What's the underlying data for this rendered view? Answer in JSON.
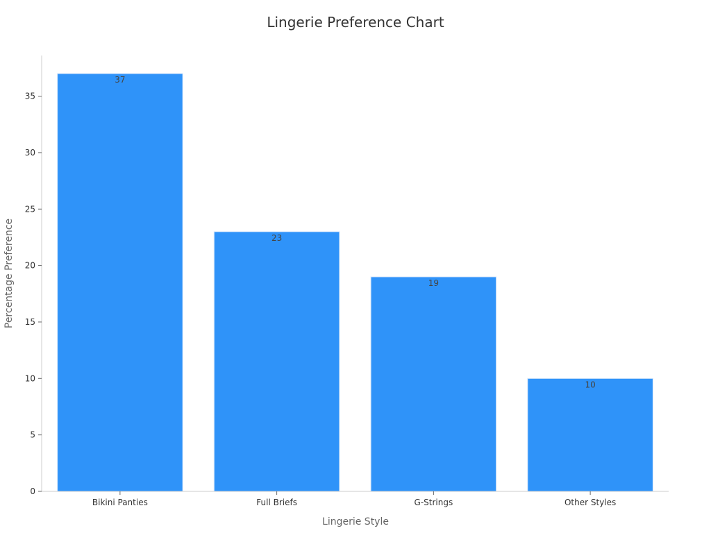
{
  "chart_data": {
    "type": "bar",
    "title": "Lingerie Preference Chart",
    "xlabel": "Lingerie Style",
    "ylabel": "Percentage Preference",
    "categories": [
      "Bikini Panties",
      "Full Briefs",
      "G-Strings",
      "Other Styles"
    ],
    "values": [
      37,
      23,
      19,
      10
    ],
    "ylim": [
      0,
      38.6
    ],
    "yticks": [
      0,
      5,
      10,
      15,
      20,
      25,
      30,
      35
    ],
    "grid": false,
    "legend": "none",
    "bar_color": "#2f93f9",
    "axis_color": "#cccccc"
  }
}
